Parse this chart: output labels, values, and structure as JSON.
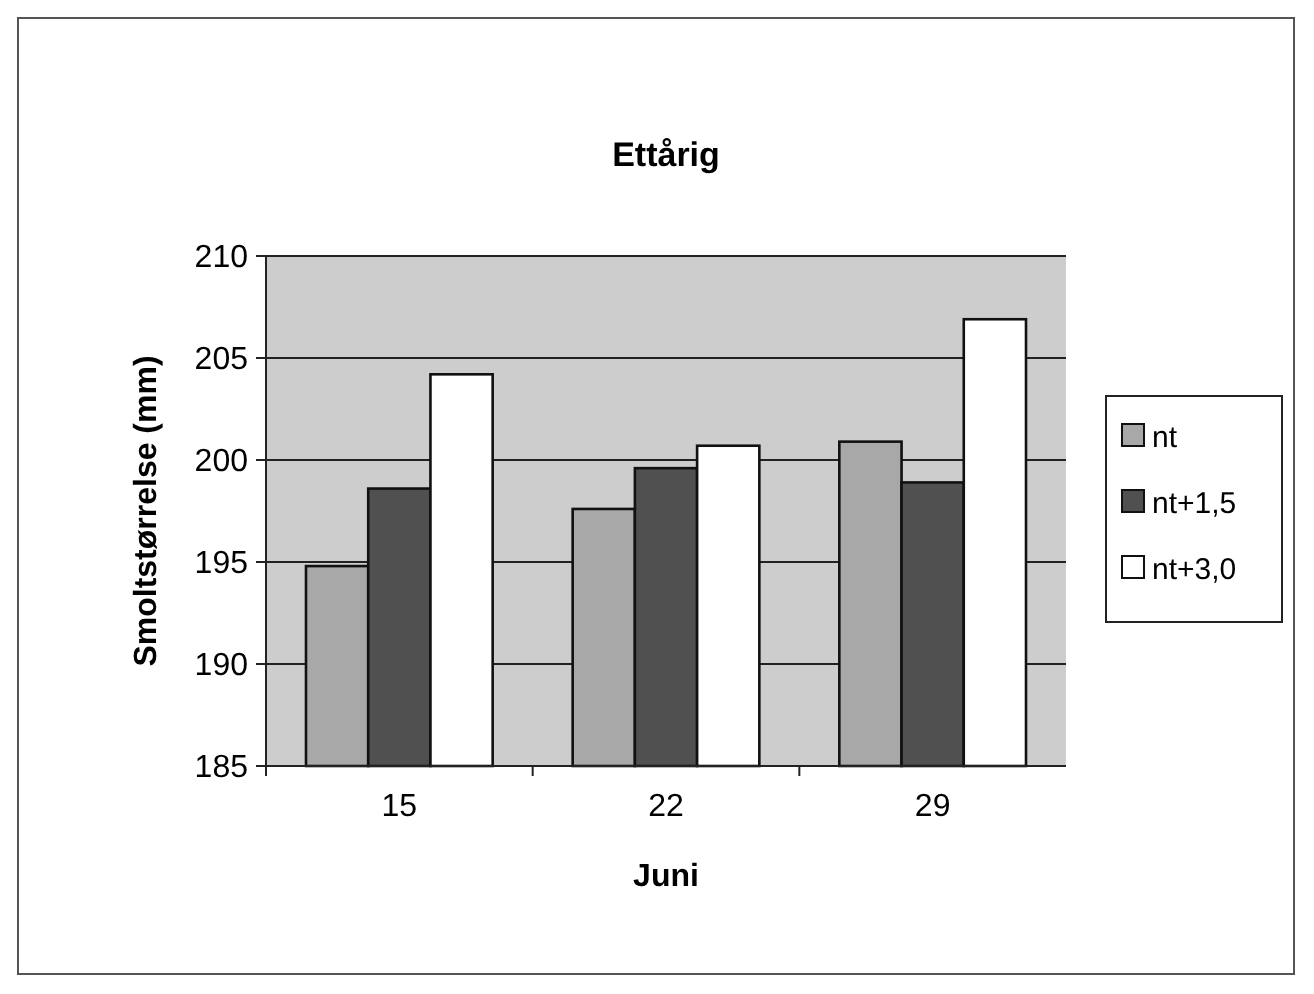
{
  "chart_data": {
    "type": "bar",
    "title": "Ettårig",
    "xlabel": "Juni",
    "ylabel": "Smoltstørrelse (mm)",
    "categories": [
      "15",
      "22",
      "29"
    ],
    "series": [
      {
        "name": "nt",
        "color": "#a8a8a8",
        "values": [
          194.8,
          197.6,
          200.9
        ]
      },
      {
        "name": "nt+1,5",
        "color": "#505050",
        "values": [
          198.6,
          199.6,
          198.9
        ]
      },
      {
        "name": "nt+3,0",
        "color": "#ffffff",
        "values": [
          204.2,
          200.7,
          206.9
        ]
      }
    ],
    "ylim": [
      185,
      210
    ],
    "yticks": [
      185,
      190,
      195,
      200,
      205,
      210
    ],
    "grid": "y",
    "legend": "right"
  }
}
